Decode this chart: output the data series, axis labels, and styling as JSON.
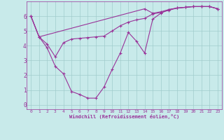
{
  "xlabel": "Windchill (Refroidissement éolien,°C)",
  "bg_color": "#c8eaea",
  "line_color": "#993399",
  "grid_color": "#a0cccc",
  "xlim": [
    -0.5,
    23.5
  ],
  "ylim": [
    -0.3,
    7.0
  ],
  "xtick_vals": [
    0,
    1,
    2,
    3,
    4,
    5,
    6,
    7,
    8,
    9,
    10,
    11,
    12,
    13,
    14,
    15,
    16,
    17,
    18,
    19,
    20,
    21,
    22,
    23
  ],
  "ytick_vals": [
    0,
    1,
    2,
    3,
    4,
    5,
    6
  ],
  "series1_x": [
    0,
    1,
    2,
    3,
    4,
    5,
    6,
    7,
    8,
    9,
    10,
    11,
    12,
    13,
    14,
    15,
    16,
    17,
    18,
    19,
    20,
    21,
    22,
    23
  ],
  "series1_y": [
    6.0,
    4.6,
    3.85,
    2.6,
    2.1,
    0.9,
    0.7,
    0.45,
    0.45,
    1.2,
    2.4,
    3.5,
    4.9,
    4.3,
    3.5,
    5.8,
    6.2,
    6.45,
    6.55,
    6.6,
    6.65,
    6.65,
    6.65,
    6.5
  ],
  "series2_x": [
    0,
    1,
    2,
    3,
    4,
    5,
    6,
    7,
    8,
    9,
    10,
    11,
    12,
    13,
    14,
    15,
    16,
    17,
    18,
    19,
    20,
    21,
    22,
    23
  ],
  "series2_y": [
    6.0,
    4.6,
    4.1,
    3.25,
    4.2,
    4.45,
    4.5,
    4.55,
    4.6,
    4.65,
    5.0,
    5.35,
    5.6,
    5.75,
    5.85,
    6.15,
    6.25,
    6.4,
    6.55,
    6.6,
    6.65,
    6.65,
    6.65,
    6.5
  ],
  "series3_x": [
    0,
    1,
    14,
    15,
    16,
    17,
    18,
    19,
    20,
    21,
    22,
    23
  ],
  "series3_y": [
    6.0,
    4.6,
    6.5,
    6.2,
    6.3,
    6.45,
    6.55,
    6.6,
    6.65,
    6.65,
    6.65,
    6.5
  ]
}
